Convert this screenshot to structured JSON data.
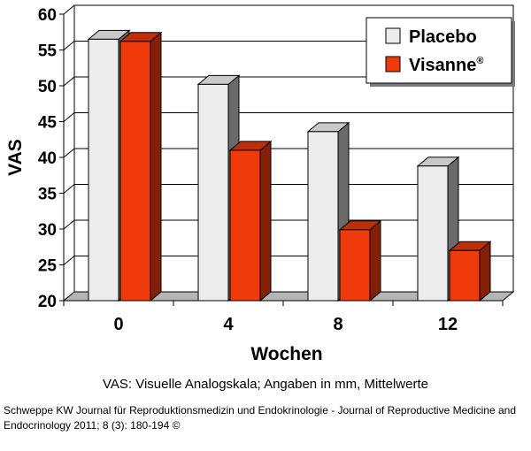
{
  "chart_data": {
    "type": "bar",
    "categories": [
      "0",
      "4",
      "8",
      "12"
    ],
    "series": [
      {
        "name": "Placebo",
        "values": [
          56.5,
          50.2,
          43.6,
          38.8
        ],
        "color": "#ececec"
      },
      {
        "name": "Visanne",
        "values": [
          56.2,
          41.0,
          29.9,
          27.0
        ],
        "color": "#ef3a0c"
      }
    ],
    "xlabel": "Wochen",
    "ylabel": "VAS",
    "ylim": [
      20,
      60
    ],
    "yticks": [
      20,
      25,
      30,
      35,
      40,
      45,
      50,
      55,
      60
    ],
    "grid": true,
    "legend_position": "top-right",
    "legend_superscript": "®"
  },
  "caption": "VAS: Visuelle Analogskala;  Angaben in mm, Mittelwerte",
  "source": "Schweppe KW Journal für Reproduktionsmedizin und Endokrinologie - Journal of Reproductive Medicine and Endocrinology 2011; 8 (3): 180-194 ©"
}
